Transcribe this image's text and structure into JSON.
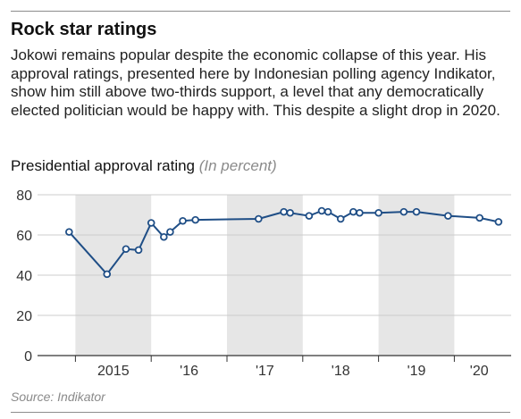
{
  "header": {
    "title": "Rock star ratings",
    "description": "Jokowi remains popular despite the economic collapse of this year. His approval ratings, presented here by Indonesian polling agency Indikator, show him still above two-thirds support, a level that any democratically elected politician would be happy with. This despite a slight drop in 2020."
  },
  "chart_heading": {
    "title": "Presidential approval rating",
    "unit": "(In percent)"
  },
  "footer": {
    "source": "Source: Indikator"
  },
  "colors": {
    "line": "#1f4e86",
    "shade": "#e6e6e6",
    "axis": "#333333",
    "grid": "#cccccc"
  },
  "chart_data": {
    "type": "line",
    "title": "Presidential approval rating",
    "ylabel": "(In percent)",
    "ylim": [
      0,
      80
    ],
    "yticks": [
      0,
      20,
      40,
      60,
      80
    ],
    "x_tick_labels": [
      "2015",
      "'16",
      "'17",
      "'18",
      "'19",
      "'20"
    ],
    "shaded_years": [
      "2015",
      "2017",
      "2019"
    ],
    "grid": true,
    "series": [
      {
        "x": [
          "2014-12",
          "2015-06",
          "2015-09",
          "2015-11",
          "2016-01",
          "2016-03",
          "2016-04",
          "2016-06",
          "2016-08",
          "2017-06",
          "2017-10",
          "2017-11",
          "2018-02",
          "2018-04",
          "2018-05",
          "2018-07",
          "2018-09",
          "2018-10",
          "2019-01",
          "2019-05",
          "2019-07",
          "2019-12",
          "2020-05",
          "2020-08"
        ],
        "values": [
          61.5,
          40.5,
          53,
          52.5,
          66,
          59,
          61.5,
          67,
          67.5,
          68,
          71.5,
          71,
          69.5,
          72,
          71.5,
          68,
          71.5,
          71,
          71,
          71.5,
          71.5,
          69.5,
          68.5,
          66.5
        ]
      }
    ]
  }
}
